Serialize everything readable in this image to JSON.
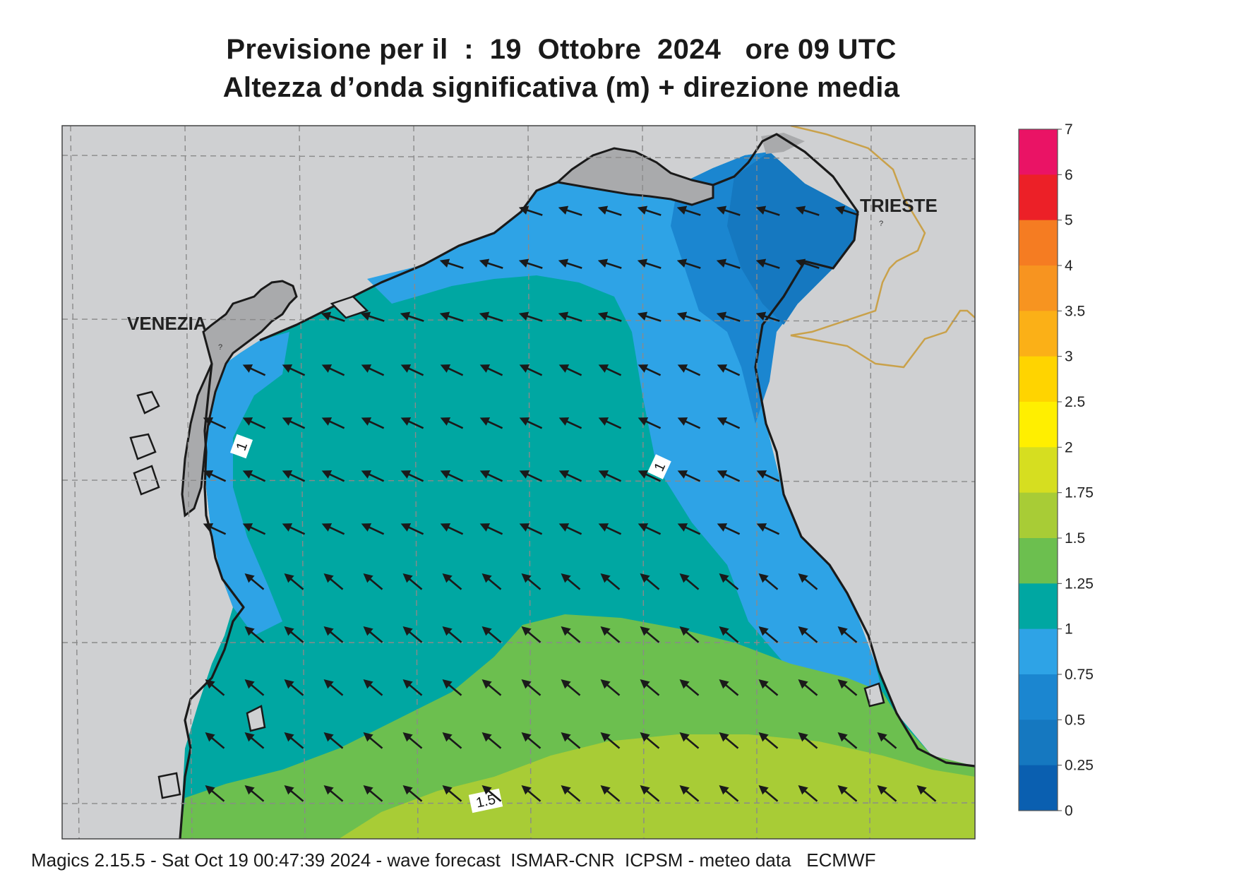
{
  "header": {
    "title_line1": "Previsione per il  :  19  Ottobre  2024   ore 09 UTC",
    "title_line2": "Altezza d’onda significativa (m) + direzione media"
  },
  "map": {
    "cities": [
      {
        "name": "VENEZIA"
      },
      {
        "name": "TRIESTE"
      }
    ],
    "contour_labels": [
      "1",
      "1",
      "1.5"
    ],
    "arrow_direction": "north-west",
    "colors": {
      "land": "#cfd0d2",
      "land_dark": "#a9aaac",
      "sea_0_5_0_75": "#1b86d0",
      "sea_0_75_1": "#2ea3e6",
      "sea_1_1_25": "#00a7a2",
      "sea_1_25_1_5": "#6cbf4f",
      "sea_1_5_1_75": "#a8cc36",
      "sea_0_25_0_5": "#1578c0",
      "border": "#c9a14a"
    }
  },
  "colorbar": {
    "ticks": [
      "0",
      "0.25",
      "0.5",
      "0.75",
      "1",
      "1.25",
      "1.5",
      "1.75",
      "2",
      "2.5",
      "3",
      "3.5",
      "4",
      "5",
      "6",
      "7"
    ],
    "colors": [
      "#0a5fb0",
      "#1578c0",
      "#1b86d0",
      "#2ea3e6",
      "#00a7a2",
      "#6cbf4f",
      "#a8cc36",
      "#d6de20",
      "#ffef00",
      "#ffd400",
      "#fbb017",
      "#f79420",
      "#f57c22",
      "#ec2027",
      "#ea1365"
    ]
  },
  "footer": {
    "text": "Magics 2.15.5 - Sat Oct 19 00:47:39 2024 - wave forecast  ISMAR-CNR  ICPSM - meteo data   ECMWF"
  }
}
